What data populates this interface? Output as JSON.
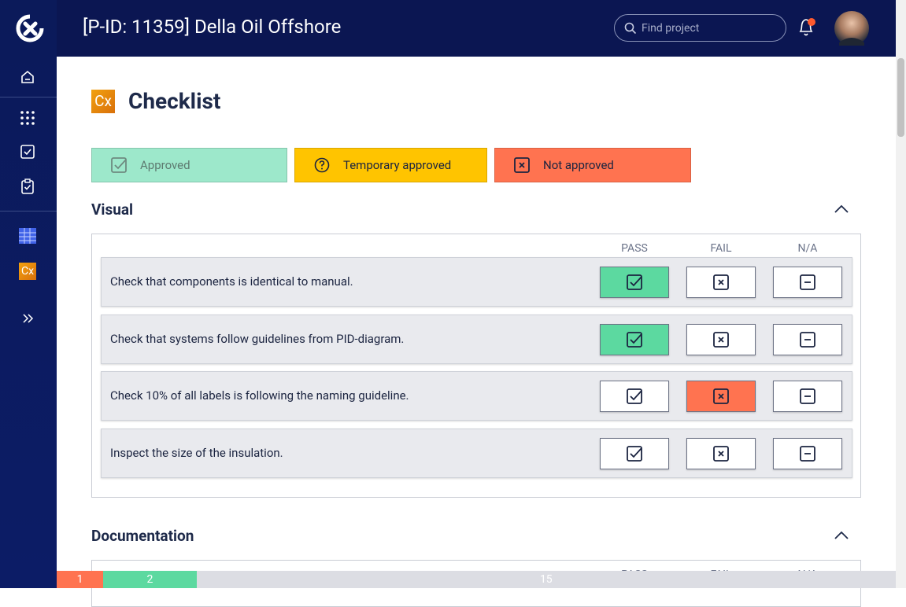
{
  "header": {
    "title": "[P-ID: 11359] Della Oil Offshore",
    "search_placeholder": "Find project"
  },
  "sidebar": {
    "cx_label": "Cx"
  },
  "page": {
    "icon_label": "Cx",
    "title": "Checklist"
  },
  "legend": [
    {
      "label": "Approved",
      "color": "#9de8cb",
      "icon": "check"
    },
    {
      "label": "Temporary approved",
      "color": "#ffc400",
      "icon": "question"
    },
    {
      "label": "Not approved",
      "color": "#ff7350",
      "icon": "cross"
    }
  ],
  "sections": [
    {
      "title": "Visual",
      "columns": [
        "PASS",
        "FAIL",
        "N/A"
      ],
      "items": [
        {
          "text": "Check that components is identical to manual.",
          "selected": 0
        },
        {
          "text": "Check that systems follow guidelines from PID-diagram.",
          "selected": 0
        },
        {
          "text": "Check 10% of all labels is following the naming guideline.",
          "selected": 1
        },
        {
          "text": "Inspect the size of the insulation.",
          "selected": null
        }
      ]
    },
    {
      "title": "Documentation",
      "columns": [
        "PASS",
        "FAIL",
        "N/A"
      ],
      "items": []
    }
  ],
  "progress": [
    {
      "value": 1,
      "color": "#ff7350"
    },
    {
      "value": 2,
      "color": "#5cd9a0"
    },
    {
      "value": 15,
      "color": "#dcdde3"
    }
  ]
}
